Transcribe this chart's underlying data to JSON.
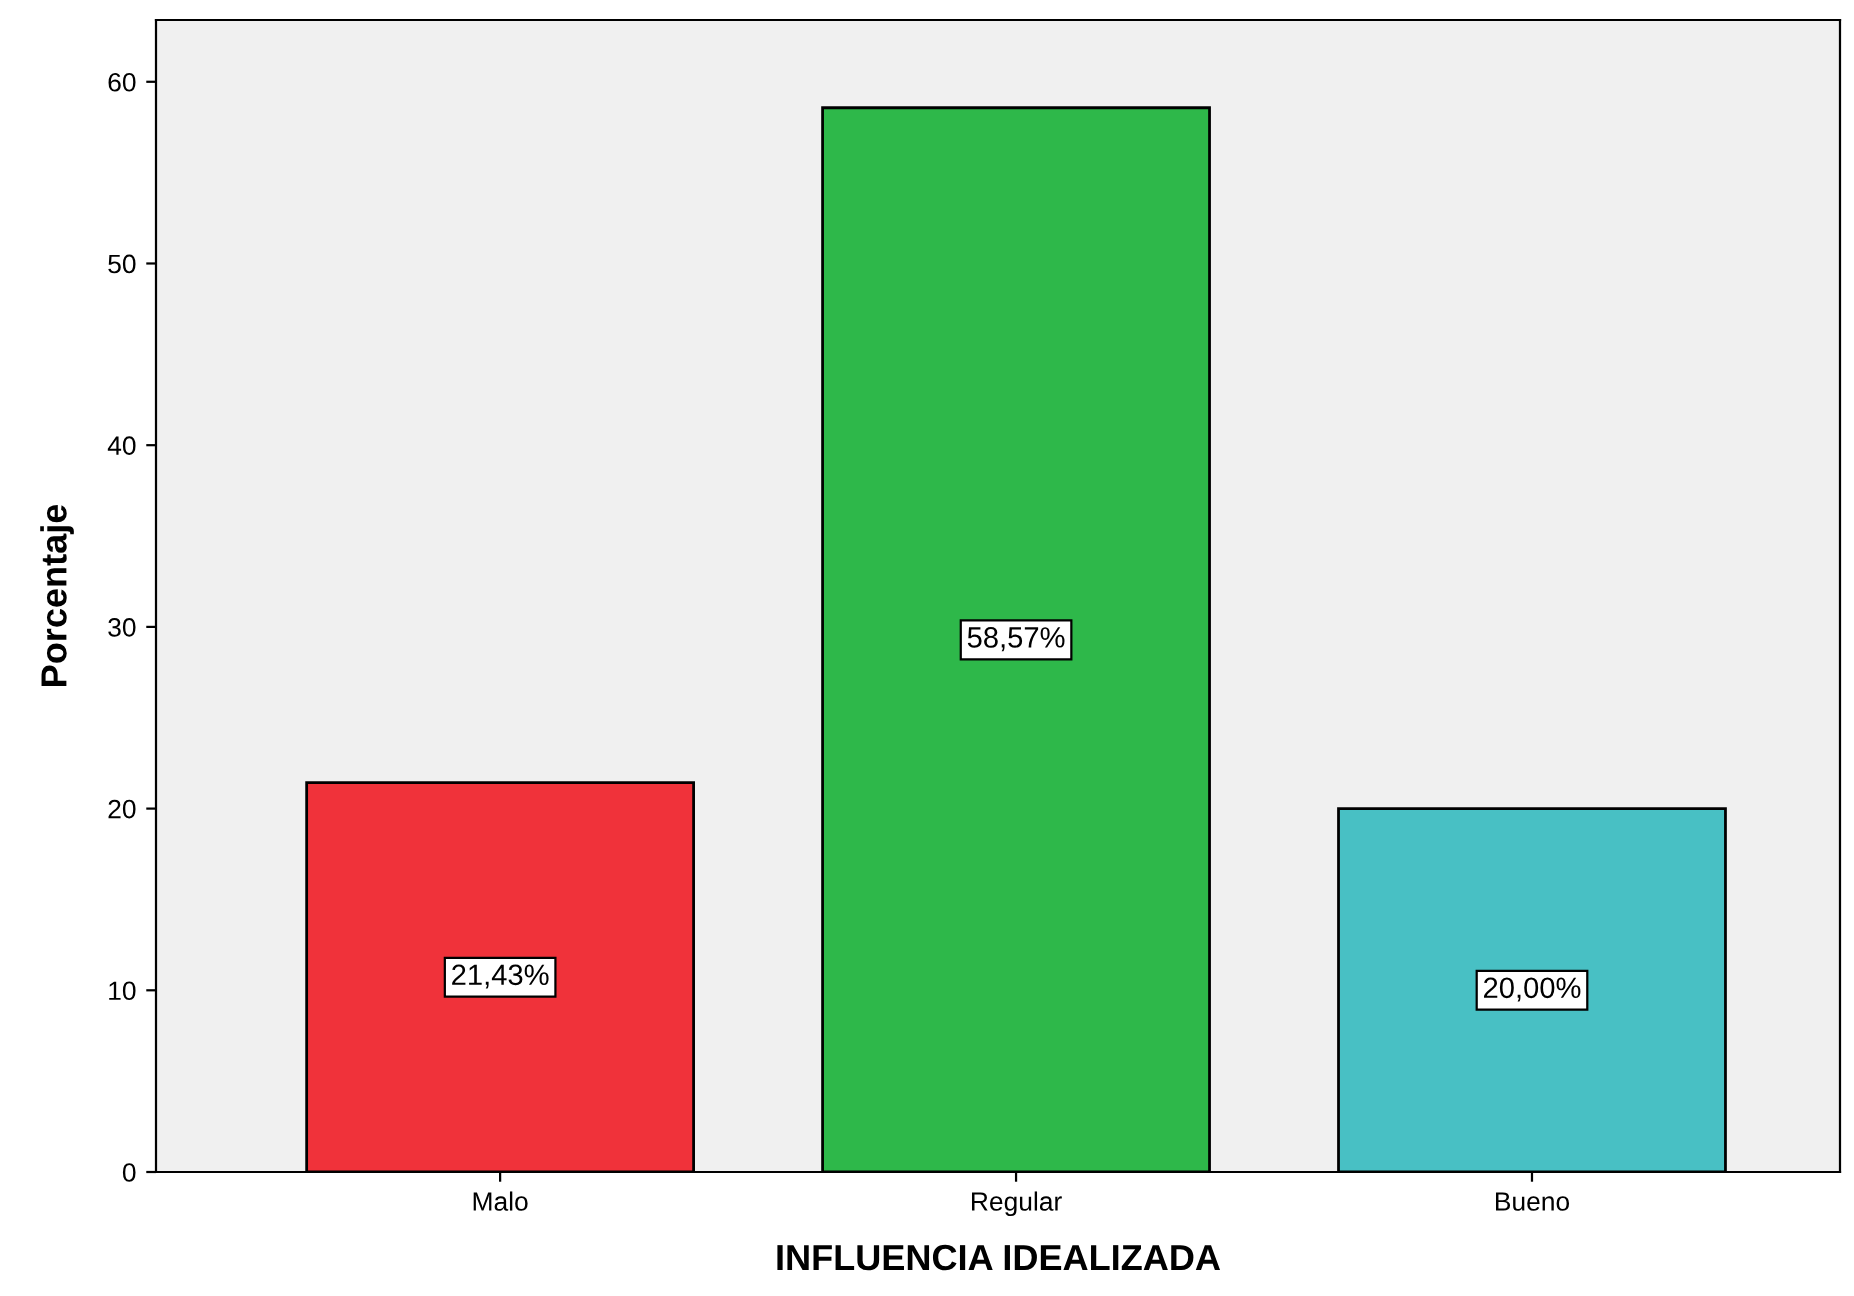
{
  "chart_data": {
    "type": "bar",
    "xlabel": "INFLUENCIA IDEALIZADA",
    "ylabel": "Porcentaje",
    "categories": [
      "Malo",
      "Regular",
      "Bueno"
    ],
    "values": [
      21.43,
      58.57,
      20.0
    ],
    "colors": [
      "#f0323a",
      "#2eb84a",
      "#48c0c4"
    ],
    "value_labels": [
      "21,43%",
      "58,57%",
      "20,00%"
    ],
    "ylim": [
      0,
      63.4
    ],
    "yticks": [
      0,
      10,
      20,
      30,
      40,
      50,
      60
    ],
    "grid": false
  }
}
